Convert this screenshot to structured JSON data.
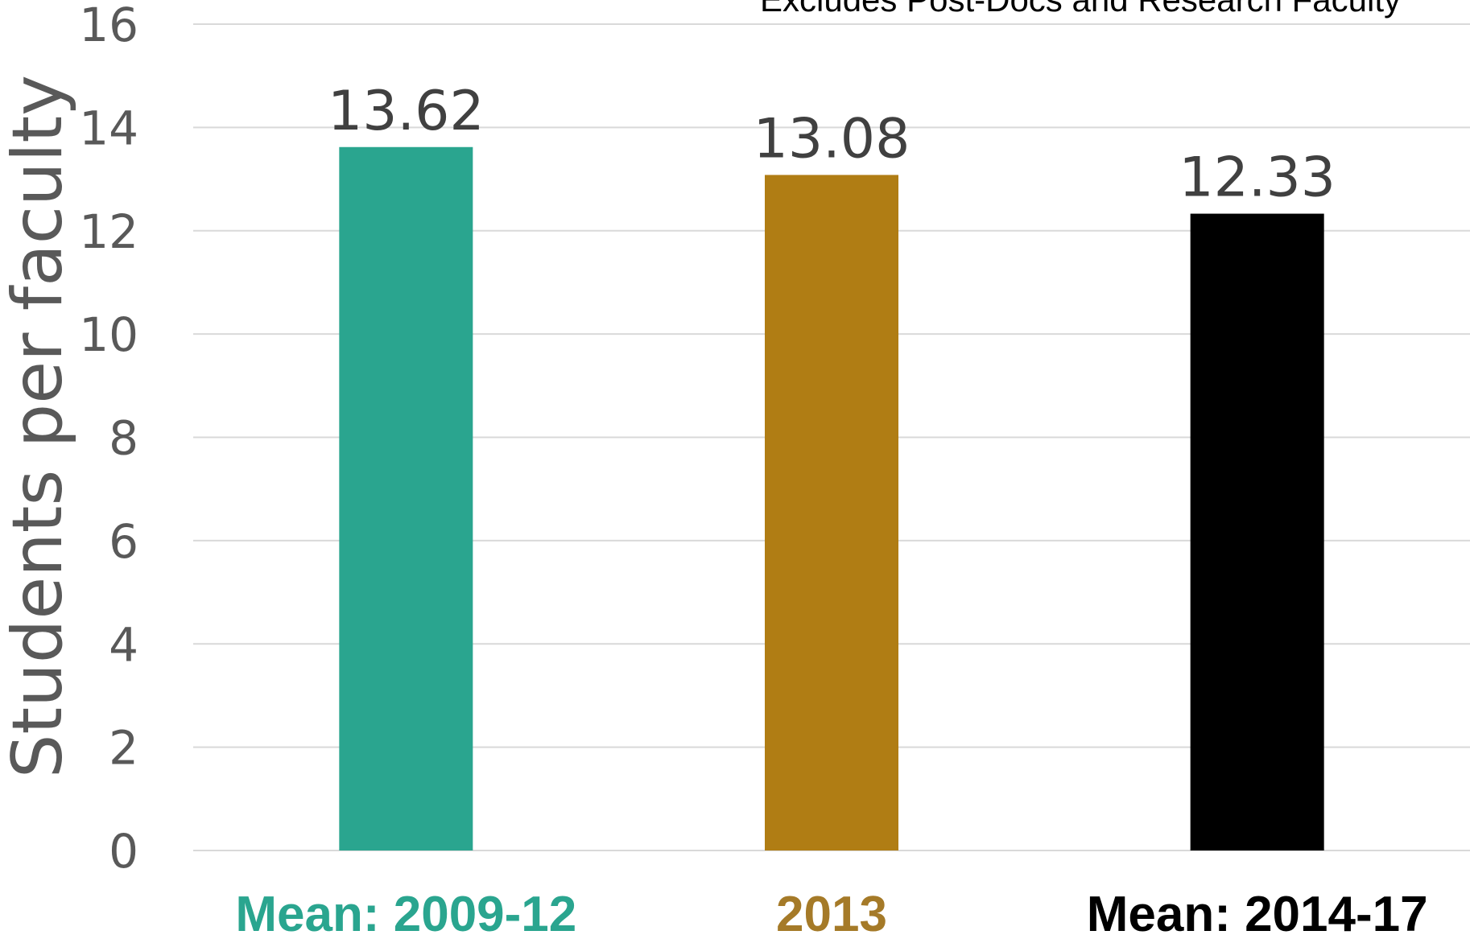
{
  "chart_data": {
    "type": "bar",
    "subtitle": "Excludes Post-Docs and Research Faculty",
    "ylabel": "Students per faculty",
    "xlabel": "",
    "ylim": [
      0,
      16
    ],
    "yticks": [
      0,
      2,
      4,
      6,
      8,
      10,
      12,
      14,
      16
    ],
    "categories": [
      "Mean: 2009-12",
      "2013",
      "Mean: 2014-17"
    ],
    "values": [
      13.62,
      13.08,
      12.33
    ],
    "data_labels": [
      "13.62",
      "13.08",
      "12.33"
    ],
    "bar_colors": [
      "#2aa58f",
      "#b07d14",
      "#000000"
    ],
    "category_label_colors": [
      "#2aa58f",
      "#a57a28",
      "#000000"
    ],
    "grid": true,
    "legend": "none"
  }
}
